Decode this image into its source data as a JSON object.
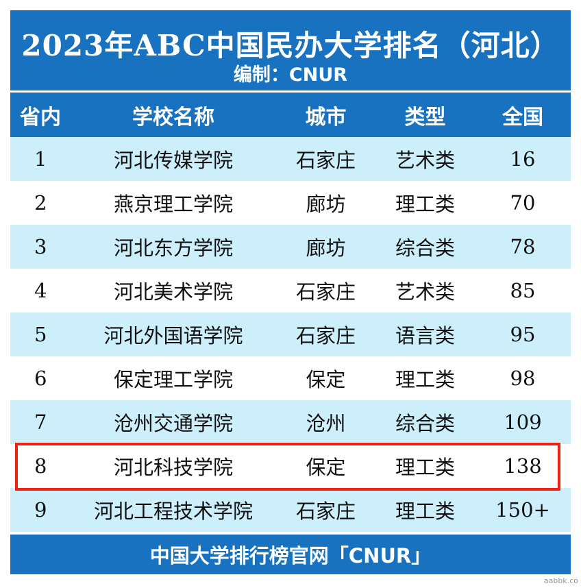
{
  "title": "2023年ABC中国民办大学排名（河北）",
  "subtitle": "编制：CNUR",
  "columns": [
    "省内",
    "学校名称",
    "城市",
    "类型",
    "全国"
  ],
  "rows": [
    {
      "rank": "1",
      "name": "河北传媒学院",
      "city": "石家庄",
      "type": "艺术类",
      "national": "16"
    },
    {
      "rank": "2",
      "name": "燕京理工学院",
      "city": "廊坊",
      "type": "理工类",
      "national": "70"
    },
    {
      "rank": "3",
      "name": "河北东方学院",
      "city": "廊坊",
      "type": "综合类",
      "national": "78"
    },
    {
      "rank": "4",
      "name": "河北美术学院",
      "city": "石家庄",
      "type": "艺术类",
      "national": "85"
    },
    {
      "rank": "5",
      "name": "河北外国语学院",
      "city": "石家庄",
      "type": "语言类",
      "national": "95"
    },
    {
      "rank": "6",
      "name": "保定理工学院",
      "city": "保定",
      "type": "理工类",
      "national": "98"
    },
    {
      "rank": "7",
      "name": "沧州交通学院",
      "city": "沧州",
      "type": "综合类",
      "national": "109"
    },
    {
      "rank": "8",
      "name": "河北科技学院",
      "city": "保定",
      "type": "理工类",
      "national": "138"
    },
    {
      "rank": "9",
      "name": "河北工程技术学院",
      "city": "石家庄",
      "type": "理工类",
      "national": "150+"
    }
  ],
  "footer": "中国大学排行榜官网「CNUR」",
  "watermark": "aabbk.co",
  "colors": {
    "header": "#1872c0",
    "row_alt": "#cdeefb",
    "highlight": "#ee2211"
  }
}
